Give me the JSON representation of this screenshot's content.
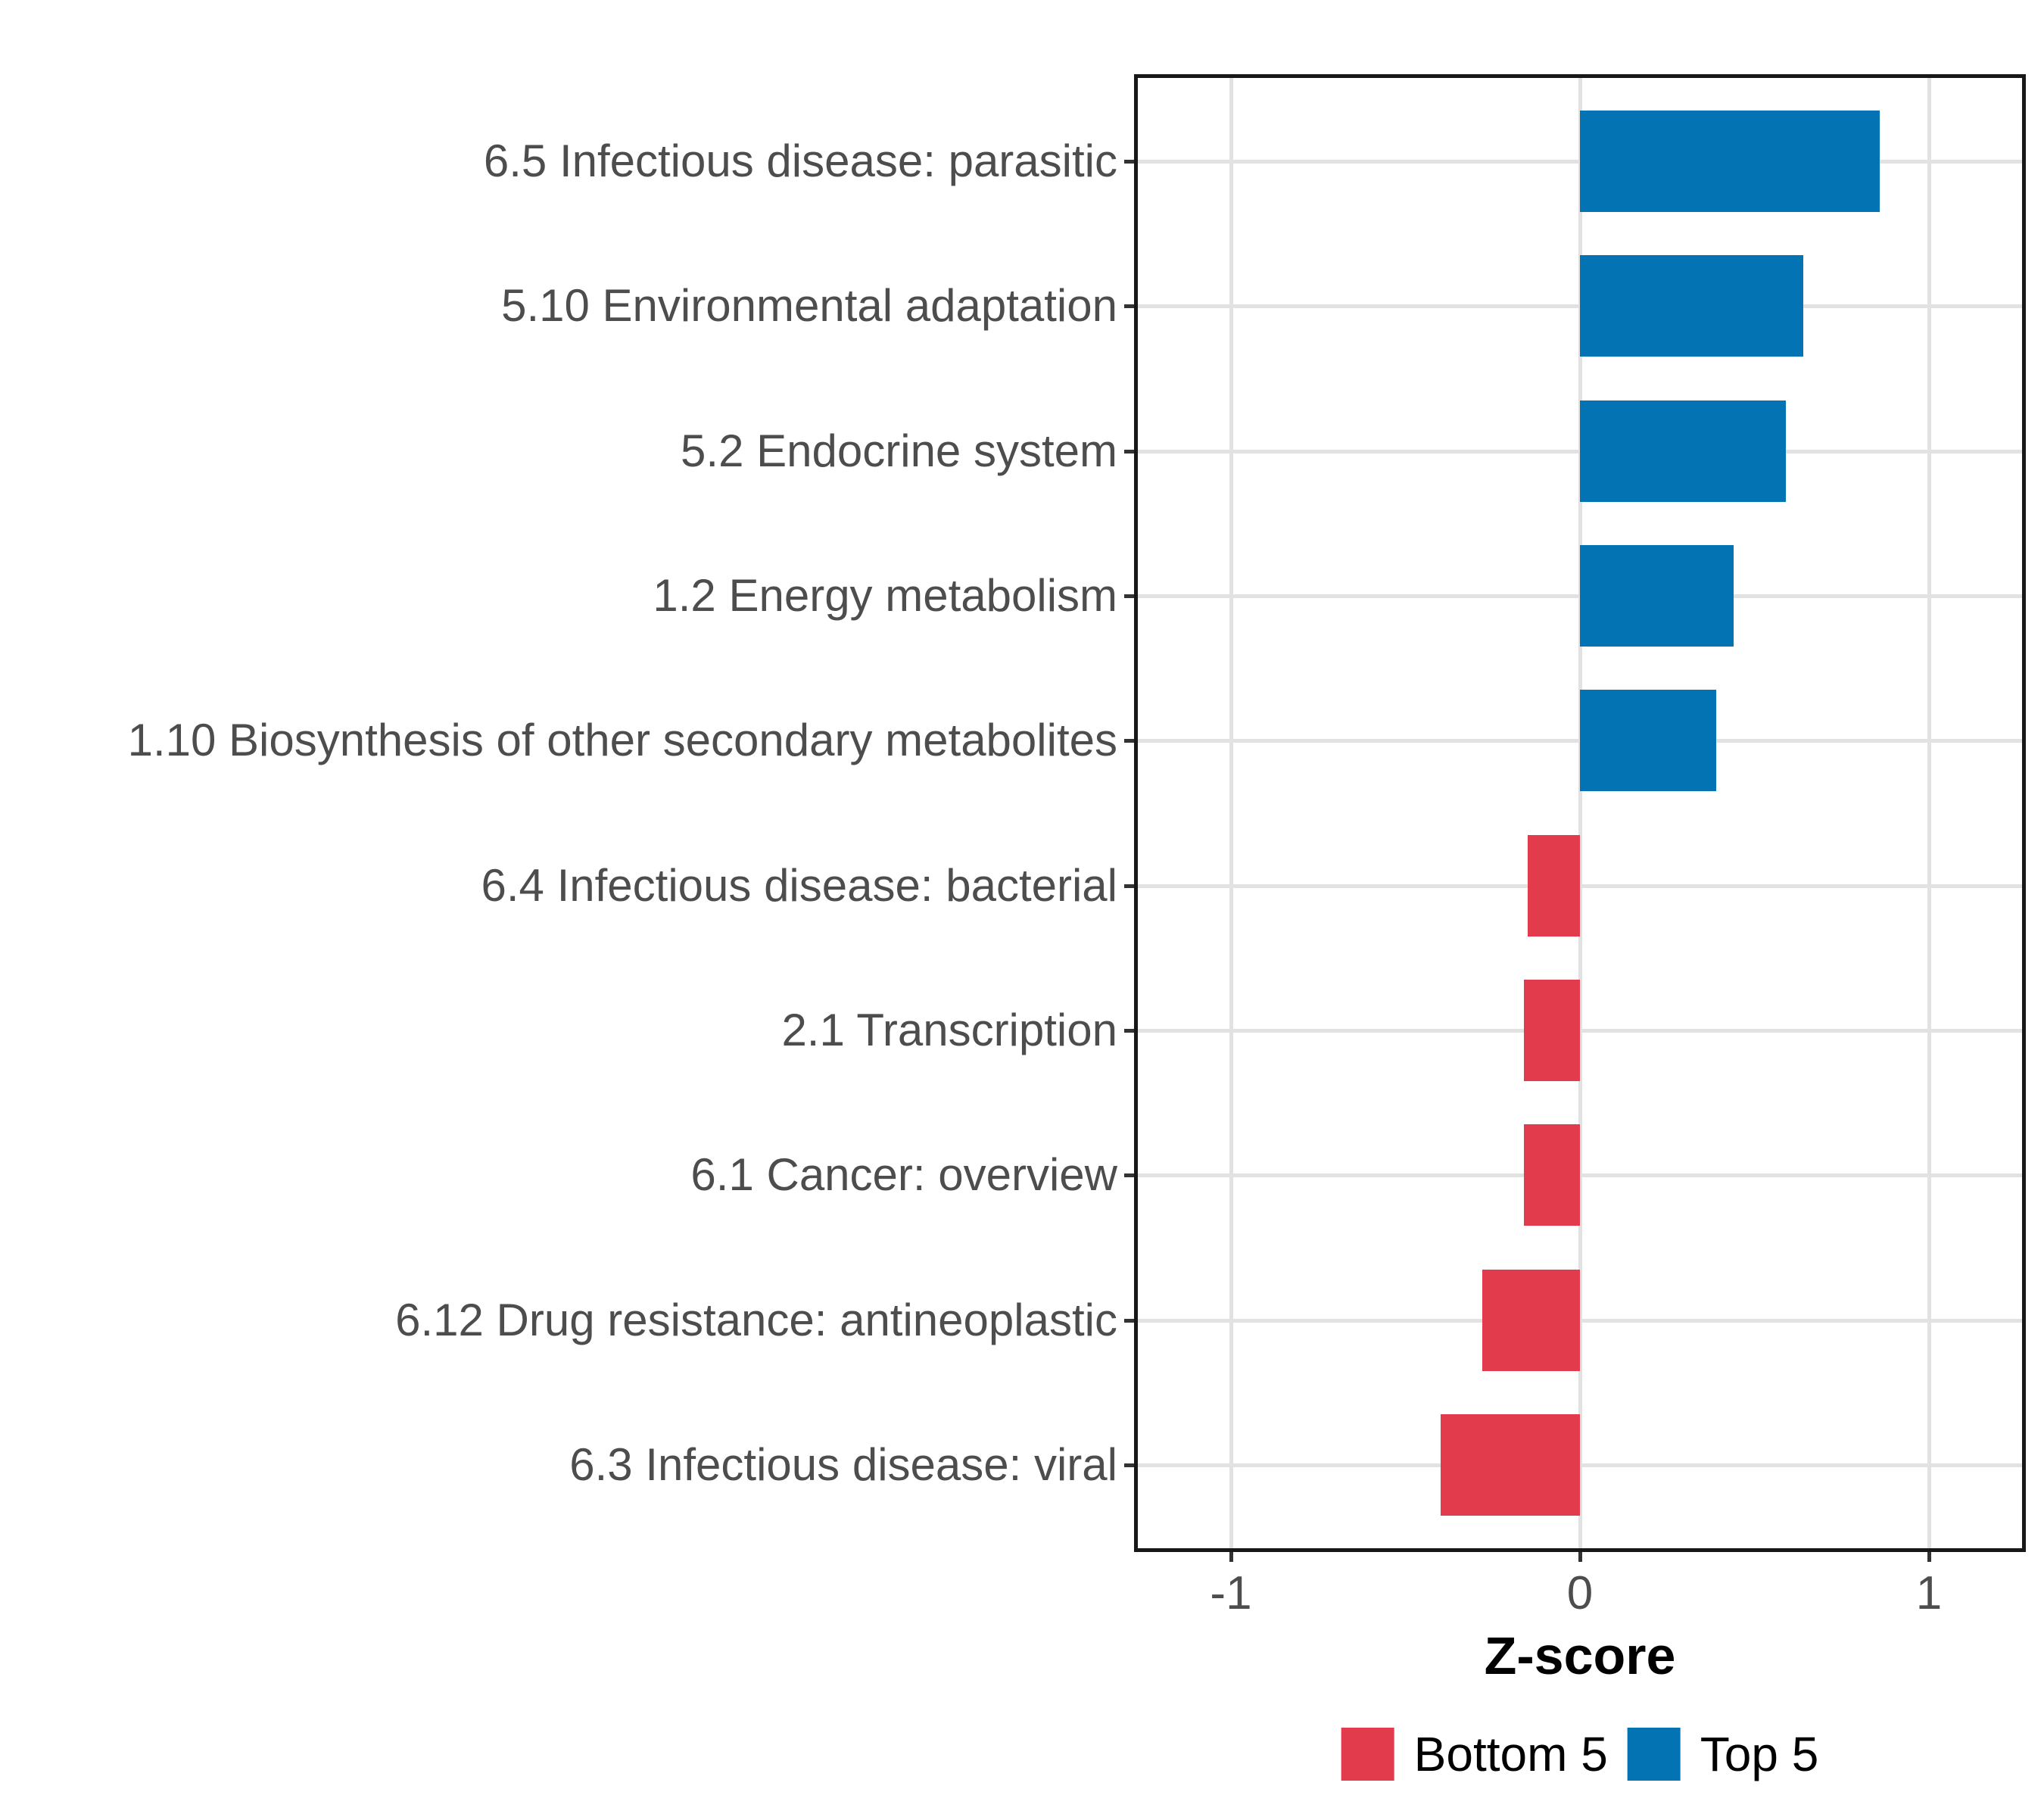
{
  "chart_data": {
    "type": "bar",
    "orientation": "horizontal",
    "title": "",
    "xlabel": "Z-score",
    "ylabel": "",
    "categories": [
      "6.5 Infectious disease: parasitic",
      "5.10 Environmental adaptation",
      "5.2 Endocrine system",
      "1.2 Energy metabolism",
      "1.10 Biosynthesis of other secondary metabolites",
      "6.4 Infectious disease: bacterial",
      "2.1 Transcription",
      "6.1 Cancer: overview",
      "6.12 Drug resistance: antineoplastic",
      "6.3 Infectious disease: viral"
    ],
    "values": [
      0.86,
      0.64,
      0.59,
      0.44,
      0.39,
      -0.15,
      -0.16,
      -0.16,
      -0.28,
      -0.4
    ],
    "groups": [
      "Top 5",
      "Top 5",
      "Top 5",
      "Top 5",
      "Top 5",
      "Bottom 5",
      "Bottom 5",
      "Bottom 5",
      "Bottom 5",
      "Bottom 5"
    ],
    "xlim": [
      -1.28,
      1.28
    ],
    "x_ticks": [
      -1,
      0,
      1
    ],
    "x_tick_labels": [
      "-1",
      "0",
      "1"
    ],
    "grid": "major-only",
    "legend_position": "bottom",
    "legend": [
      {
        "label": "Bottom 5",
        "color": "#E23B4C"
      },
      {
        "label": "Top 5",
        "color": "#0473B3"
      }
    ],
    "colors": {
      "Bottom 5": "#E23B4C",
      "Top 5": "#0473B3"
    },
    "style_colors": {
      "axis_text": "#4d4d4d",
      "panel_border": "#181818",
      "gridline": "#e2e2e2",
      "tick_mark": "#333333"
    }
  }
}
